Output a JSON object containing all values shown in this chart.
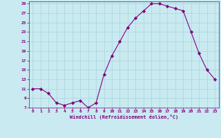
{
  "x": [
    0,
    1,
    2,
    3,
    4,
    5,
    6,
    7,
    8,
    9,
    10,
    11,
    12,
    13,
    14,
    15,
    16,
    17,
    18,
    19,
    20,
    21,
    22,
    23
  ],
  "y": [
    11,
    11,
    10,
    8,
    7.5,
    8,
    8.5,
    7,
    8,
    14,
    18,
    21,
    24,
    26,
    27.5,
    29,
    29,
    28.5,
    28,
    27.5,
    23,
    18.5,
    15,
    13
  ],
  "line_color": "#800080",
  "marker": "D",
  "marker_size": 2.2,
  "bg_color": "#c8eaf0",
  "grid_color": "#aad4dc",
  "xlabel": "Windchill (Refroidissement éolien,°C)",
  "xlabel_color": "#800080",
  "tick_color": "#800080",
  "ylim": [
    7,
    29.5
  ],
  "xlim": [
    -0.5,
    23.5
  ],
  "yticks": [
    7,
    9,
    11,
    13,
    15,
    17,
    19,
    21,
    23,
    25,
    27,
    29
  ],
  "xticks": [
    0,
    1,
    2,
    3,
    4,
    5,
    6,
    7,
    8,
    9,
    10,
    11,
    12,
    13,
    14,
    15,
    16,
    17,
    18,
    19,
    20,
    21,
    22,
    23
  ]
}
